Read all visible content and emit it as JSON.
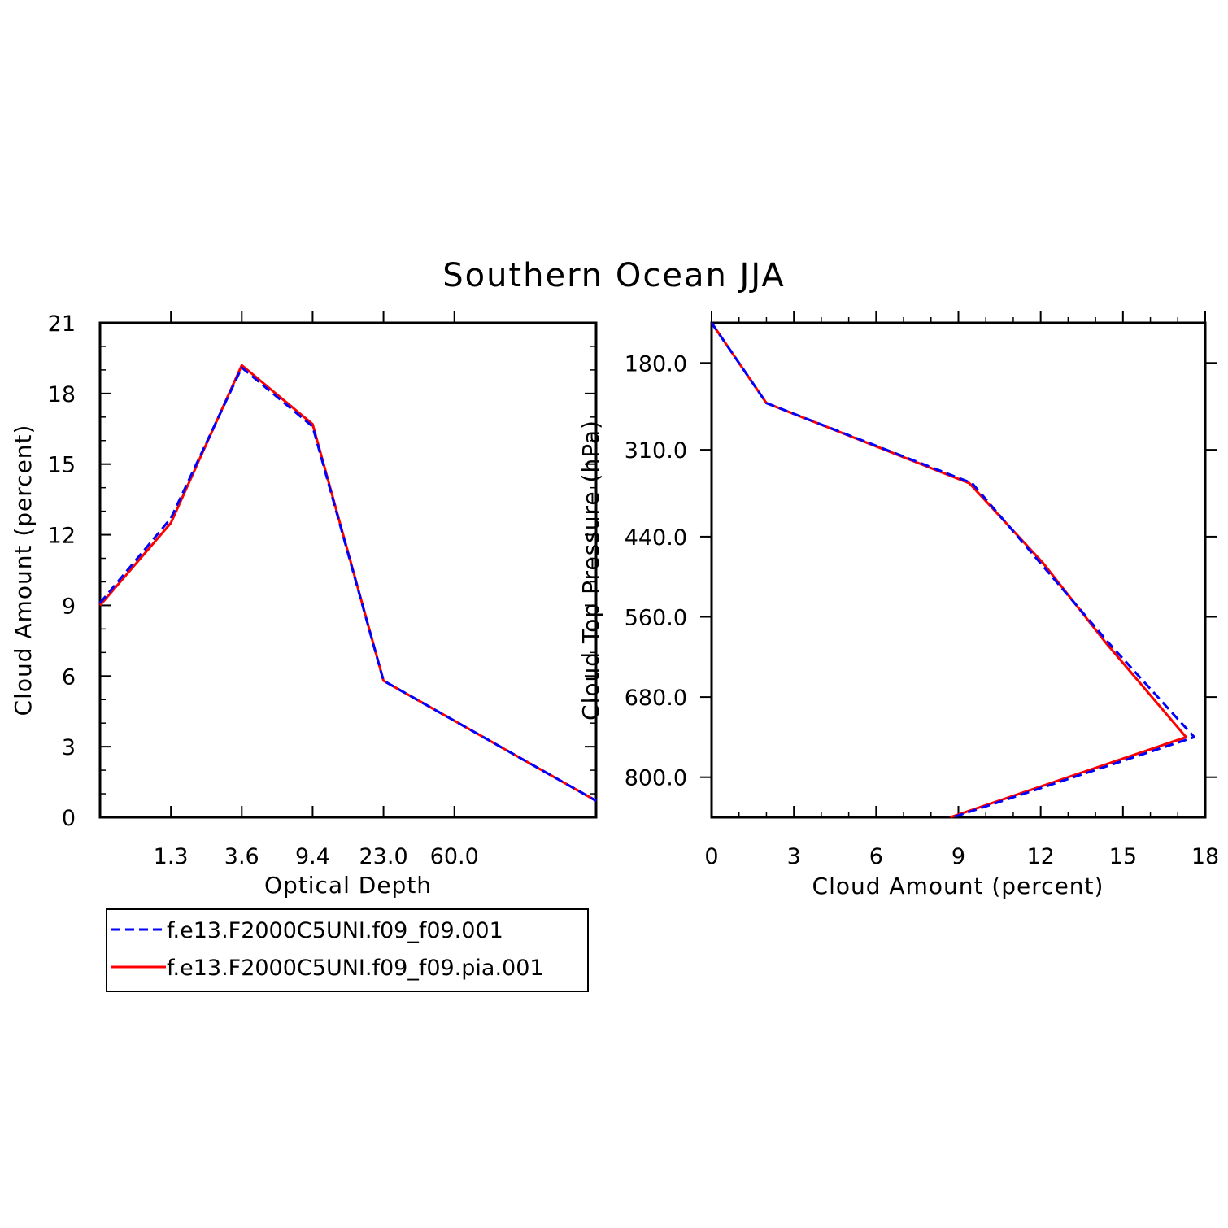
{
  "title": "Southern Ocean JJA",
  "colors": {
    "series_a": "#0000ff",
    "series_b": "#ff0000",
    "axis": "#000000"
  },
  "legend": {
    "entries": [
      {
        "label": "f.e13.F2000C5UNI.f09_f09.001",
        "color": "#0000ff",
        "style": "dashed"
      },
      {
        "label": "f.e13.F2000C5UNI.f09_f09.pia.001",
        "color": "#ff0000",
        "style": "solid"
      }
    ]
  },
  "chart_data": [
    {
      "type": "line",
      "xlabel": "Optical Depth",
      "ylabel": "Cloud Amount (percent)",
      "x_tick_labels": [
        "1.3",
        "3.6",
        "9.4",
        "23.0",
        "60.0"
      ],
      "y_tick_labels": [
        "0",
        "3",
        "6",
        "9",
        "12",
        "15",
        "18",
        "21"
      ],
      "ylim": [
        0,
        21
      ],
      "x_bin_count": 7,
      "series": [
        {
          "name": "f.e13.F2000C5UNI.f09_f09.001",
          "values": [
            9.1,
            12.7,
            19.1,
            16.6,
            5.8,
            0.7
          ]
        },
        {
          "name": "f.e13.F2000C5UNI.f09_f09.pia.001",
          "values": [
            9.0,
            12.5,
            19.2,
            16.7,
            5.8,
            0.7
          ]
        }
      ]
    },
    {
      "type": "line",
      "xlabel": "Cloud Amount (percent)",
      "ylabel": "Cloud Top Pressure (hPa)",
      "x_tick_labels": [
        "0",
        "3",
        "6",
        "9",
        "12",
        "15",
        "18"
      ],
      "y_tick_labels": [
        "180.0",
        "310.0",
        "440.0",
        "560.0",
        "680.0",
        "800.0"
      ],
      "xlim": [
        0,
        18
      ],
      "ylim": [
        120,
        860
      ],
      "series": [
        {
          "name": "f.e13.F2000C5UNI.f09_f09.001",
          "x": [
            0,
            2.0,
            9.5,
            12.0,
            14.5,
            17.6,
            8.8
          ],
          "y": [
            120,
            240,
            360,
            480,
            600,
            740,
            860
          ]
        },
        {
          "name": "f.e13.F2000C5UNI.f09_f09.pia.001",
          "x": [
            0,
            2.0,
            9.4,
            12.1,
            14.4,
            17.3,
            8.7
          ],
          "y": [
            120,
            240,
            360,
            480,
            600,
            740,
            860
          ]
        }
      ]
    }
  ]
}
